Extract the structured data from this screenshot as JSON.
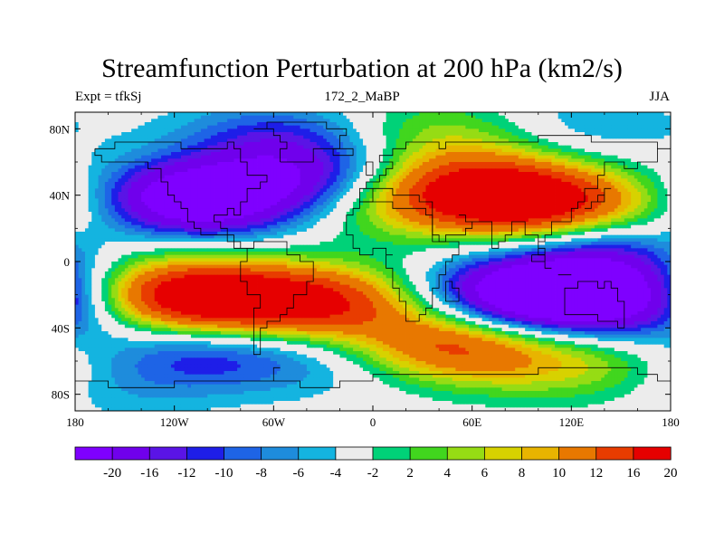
{
  "chart_data": {
    "type": "heatmap",
    "title": "Streamfunction Perturbation at 200 hPa (km2/s)",
    "subtitle_left": "Expt = tfkSj",
    "subtitle_center": "172_2_MaBP",
    "subtitle_right": "JJA",
    "x_ticks": [
      {
        "value": -180,
        "label": "180"
      },
      {
        "value": -120,
        "label": "120W"
      },
      {
        "value": -60,
        "label": "60W"
      },
      {
        "value": 0,
        "label": "0"
      },
      {
        "value": 60,
        "label": "60E"
      },
      {
        "value": 120,
        "label": "120E"
      },
      {
        "value": 180,
        "label": "180"
      }
    ],
    "y_ticks": [
      {
        "value": 80,
        "label": "80N"
      },
      {
        "value": 40,
        "label": "40N"
      },
      {
        "value": 0,
        "label": "0"
      },
      {
        "value": -40,
        "label": "40S"
      },
      {
        "value": -80,
        "label": "80S"
      }
    ],
    "xlim": [
      -180,
      180
    ],
    "ylim": [
      -90,
      90
    ],
    "levels": [
      -20,
      -16,
      -12,
      -10,
      -8,
      -6,
      -4,
      -2,
      2,
      4,
      6,
      8,
      10,
      12,
      16,
      20
    ],
    "level_labels": [
      "-20",
      "-16",
      "-12",
      "-10",
      "-8",
      "-6",
      "-4",
      "-2",
      "2",
      "4",
      "6",
      "8",
      "10",
      "12",
      "16",
      "20"
    ],
    "colors": [
      "#7f00ff",
      "#7000ec",
      "#5a14e6",
      "#1e1ee8",
      "#1e64e6",
      "#1e8cdc",
      "#14b4e0",
      "#ececec",
      "#00d278",
      "#41d61e",
      "#96dc14",
      "#d7d200",
      "#e8b400",
      "#e87800",
      "#e83c00",
      "#e60000"
    ],
    "missing_color": "#ececec",
    "centers": [
      {
        "lon": -110,
        "lat": 37,
        "value": -23
      },
      {
        "lon": -40,
        "lat": 50,
        "value": -12
      },
      {
        "lon": 150,
        "lat": 8,
        "value": -11
      },
      {
        "lon": 165,
        "lat": 33,
        "value": 5
      },
      {
        "lon": 95,
        "lat": 36,
        "value": 23
      },
      {
        "lon": 55,
        "lat": 48,
        "value": 11
      },
      {
        "lon": 15,
        "lat": 35,
        "value": 8
      },
      {
        "lon": -60,
        "lat": 75,
        "value": -8
      },
      {
        "lon": 40,
        "lat": 78,
        "value": 6
      },
      {
        "lon": 130,
        "lat": 82,
        "value": -4
      },
      {
        "lon": -170,
        "lat": 12,
        "value": 4
      },
      {
        "lon": -100,
        "lat": -22,
        "value": 23
      },
      {
        "lon": -30,
        "lat": -25,
        "value": 18
      },
      {
        "lon": -150,
        "lat": -22,
        "value": 10
      },
      {
        "lon": 95,
        "lat": -20,
        "value": -24
      },
      {
        "lon": 150,
        "lat": -22,
        "value": -14
      },
      {
        "lon": -170,
        "lat": -30,
        "value": -6
      },
      {
        "lon": -100,
        "lat": -55,
        "value": -9
      },
      {
        "lon": -30,
        "lat": -60,
        "value": -4
      },
      {
        "lon": 45,
        "lat": -50,
        "value": 16
      },
      {
        "lon": 110,
        "lat": -60,
        "value": 7
      },
      {
        "lon": 160,
        "lat": -68,
        "value": 3
      },
      {
        "lon": -160,
        "lat": -75,
        "value": -4
      }
    ]
  }
}
